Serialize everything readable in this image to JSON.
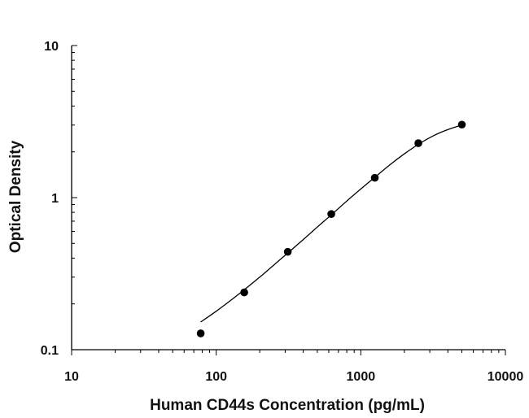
{
  "chart_data": {
    "type": "scatter",
    "title": "",
    "xlabel": "Human CD44s Concentration (pg/mL)",
    "ylabel": "Optical Density",
    "xscale": "log",
    "yscale": "log",
    "xlim": [
      10,
      10000
    ],
    "ylim": [
      0.1,
      10
    ],
    "x_ticks": [
      10,
      100,
      1000,
      10000
    ],
    "x_tick_labels": [
      "10",
      "100",
      "1000",
      "10000"
    ],
    "y_ticks": [
      0.1,
      1,
      10
    ],
    "y_tick_labels": [
      "0.1",
      "1",
      "10"
    ],
    "grid": false,
    "legend": "none",
    "point_color": "#000000",
    "series": [
      {
        "x": [
          78.1,
          156.25,
          312.5,
          625,
          1250,
          2500,
          5000
        ],
        "y": [
          0.128,
          0.238,
          0.44,
          0.78,
          1.35,
          2.28,
          3.02
        ]
      }
    ],
    "fit_curve": {
      "x": [
        78,
        100,
        130,
        160,
        200,
        250,
        312.5,
        400,
        500,
        625,
        800,
        1000,
        1250,
        1600,
        2000,
        2500,
        3200,
        4000,
        5000
      ],
      "y": [
        0.152,
        0.179,
        0.216,
        0.252,
        0.3,
        0.36,
        0.432,
        0.53,
        0.64,
        0.77,
        0.95,
        1.14,
        1.36,
        1.65,
        1.94,
        2.24,
        2.56,
        2.8,
        3.0
      ]
    }
  }
}
